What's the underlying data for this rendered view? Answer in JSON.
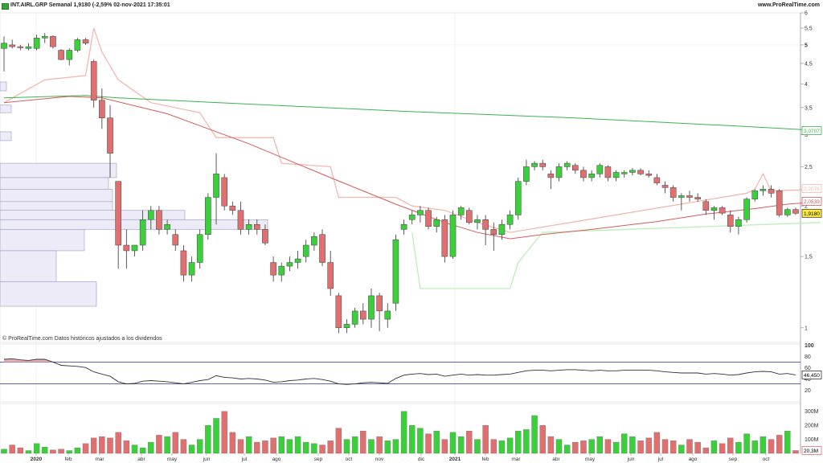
{
  "header": {
    "title": "INT.AIRL.GRP Semanal 1,9180 (-2,59% 02-nov-2021 17:35:01",
    "site": "www.ProRealTime.com"
  },
  "footnote": "© ProRealTime.com Datos históricos ajustados a los dividendos",
  "colors": {
    "up": "#3bcf3b",
    "down": "#e07070",
    "sma_slow": "#3cb44b",
    "sma_fast": "#d65b5b",
    "stop_upper": "#f3b8b0",
    "stop_lower": "#b9f0b9",
    "volume_profile": "#ecebf7",
    "rsi_line": "#333333",
    "rsi_bounds": "#2f2f8f"
  },
  "price_axis": {
    "scale": "log",
    "ticks": [
      "6",
      "5,5",
      "5",
      "4,5",
      "4",
      "3,5",
      "3",
      "2,5",
      "2",
      "1,5",
      "1"
    ],
    "bold_ticks": [
      "5"
    ],
    "labels": {
      "sma_slow": "3,0707",
      "stop": "2,2076",
      "sma_fast": "2,0539",
      "last": "1,9180"
    }
  },
  "rsi_axis": {
    "ticks": [
      "100",
      "80",
      "60",
      "40",
      "20"
    ],
    "current": "46,450"
  },
  "volume_axis": {
    "ticks": [
      "300M",
      "200M",
      "100M"
    ],
    "current": "20,3M"
  },
  "time_axis": [
    "2020",
    "feb",
    "mar",
    "abr",
    "may",
    "jun",
    "jul",
    "ago",
    "sep",
    "oct",
    "nov",
    "dic",
    "2021",
    "feb",
    "mar",
    "abr",
    "may",
    "jun",
    "jul",
    "ago",
    "sep",
    "oct"
  ],
  "chart_data": {
    "type": "candlestick",
    "title": "INT.AIRL.GRP Semanal 1,9180 (-2,59% 02-nov-2021 17:35:01",
    "timeframe": "weekly",
    "y_scale": "log",
    "candles": [
      {
        "o": 4.9,
        "h": 5.25,
        "l": 4.3,
        "c": 5.05
      },
      {
        "o": 5.0,
        "h": 5.15,
        "l": 4.9,
        "c": 4.95
      },
      {
        "o": 4.95,
        "h": 5.0,
        "l": 4.85,
        "c": 4.92
      },
      {
        "o": 4.9,
        "h": 5.05,
        "l": 4.85,
        "c": 4.95
      },
      {
        "o": 4.9,
        "h": 5.3,
        "l": 4.85,
        "c": 5.2
      },
      {
        "o": 5.2,
        "h": 5.35,
        "l": 5.05,
        "c": 5.25
      },
      {
        "o": 5.25,
        "h": 5.28,
        "l": 4.9,
        "c": 4.95
      },
      {
        "o": 4.85,
        "h": 4.88,
        "l": 4.58,
        "c": 4.6
      },
      {
        "o": 4.6,
        "h": 4.9,
        "l": 4.45,
        "c": 4.85
      },
      {
        "o": 4.85,
        "h": 5.2,
        "l": 4.8,
        "c": 5.15
      },
      {
        "o": 5.15,
        "h": 5.2,
        "l": 5.0,
        "c": 5.05
      },
      {
        "o": 4.55,
        "h": 4.6,
        "l": 3.5,
        "c": 3.65
      },
      {
        "o": 3.65,
        "h": 3.9,
        "l": 3.1,
        "c": 3.3
      },
      {
        "o": 3.3,
        "h": 3.55,
        "l": 2.35,
        "c": 2.7
      },
      {
        "o": 2.3,
        "h": 2.3,
        "l": 1.4,
        "c": 1.6
      },
      {
        "o": 1.6,
        "h": 1.75,
        "l": 1.4,
        "c": 1.55
      },
      {
        "o": 1.55,
        "h": 1.6,
        "l": 1.5,
        "c": 1.6
      },
      {
        "o": 1.6,
        "h": 1.95,
        "l": 1.55,
        "c": 1.85
      },
      {
        "o": 1.85,
        "h": 2.0,
        "l": 1.75,
        "c": 1.95
      },
      {
        "o": 1.95,
        "h": 2.0,
        "l": 1.7,
        "c": 1.75
      },
      {
        "o": 1.75,
        "h": 1.85,
        "l": 1.7,
        "c": 1.8
      },
      {
        "o": 1.7,
        "h": 1.75,
        "l": 1.55,
        "c": 1.6
      },
      {
        "o": 1.55,
        "h": 1.6,
        "l": 1.3,
        "c": 1.35
      },
      {
        "o": 1.35,
        "h": 1.5,
        "l": 1.3,
        "c": 1.45
      },
      {
        "o": 1.45,
        "h": 1.75,
        "l": 1.4,
        "c": 1.7
      },
      {
        "o": 1.7,
        "h": 2.15,
        "l": 1.65,
        "c": 2.1
      },
      {
        "o": 2.1,
        "h": 2.7,
        "l": 1.8,
        "c": 2.4
      },
      {
        "o": 2.35,
        "h": 2.4,
        "l": 1.95,
        "c": 2.0
      },
      {
        "o": 2.0,
        "h": 2.05,
        "l": 1.9,
        "c": 1.95
      },
      {
        "o": 1.95,
        "h": 2.05,
        "l": 1.7,
        "c": 1.75
      },
      {
        "o": 1.75,
        "h": 1.85,
        "l": 1.7,
        "c": 1.8
      },
      {
        "o": 1.8,
        "h": 1.85,
        "l": 1.7,
        "c": 1.75
      },
      {
        "o": 1.75,
        "h": 1.8,
        "l": 1.6,
        "c": 1.62
      },
      {
        "o": 1.45,
        "h": 1.5,
        "l": 1.3,
        "c": 1.35
      },
      {
        "o": 1.35,
        "h": 1.45,
        "l": 1.3,
        "c": 1.42
      },
      {
        "o": 1.42,
        "h": 1.5,
        "l": 1.38,
        "c": 1.45
      },
      {
        "o": 1.45,
        "h": 1.55,
        "l": 1.4,
        "c": 1.48
      },
      {
        "o": 1.5,
        "h": 1.65,
        "l": 1.45,
        "c": 1.6
      },
      {
        "o": 1.6,
        "h": 1.72,
        "l": 1.55,
        "c": 1.68
      },
      {
        "o": 1.7,
        "h": 1.75,
        "l": 1.42,
        "c": 1.45
      },
      {
        "o": 1.45,
        "h": 1.55,
        "l": 1.2,
        "c": 1.25
      },
      {
        "o": 1.2,
        "h": 1.22,
        "l": 0.97,
        "c": 1.0
      },
      {
        "o": 1.0,
        "h": 1.05,
        "l": 0.97,
        "c": 1.02
      },
      {
        "o": 1.02,
        "h": 1.12,
        "l": 1.0,
        "c": 1.1
      },
      {
        "o": 1.1,
        "h": 1.15,
        "l": 1.02,
        "c": 1.05
      },
      {
        "o": 1.05,
        "h": 1.25,
        "l": 1.0,
        "c": 1.2
      },
      {
        "o": 1.2,
        "h": 1.22,
        "l": 0.98,
        "c": 1.1
      },
      {
        "o": 1.05,
        "h": 1.15,
        "l": 1.0,
        "c": 1.1
      },
      {
        "o": 1.15,
        "h": 1.7,
        "l": 1.1,
        "c": 1.65
      },
      {
        "o": 1.75,
        "h": 1.85,
        "l": 1.7,
        "c": 1.8
      },
      {
        "o": 1.85,
        "h": 1.95,
        "l": 1.8,
        "c": 1.9
      },
      {
        "o": 1.9,
        "h": 2.0,
        "l": 1.82,
        "c": 1.95
      },
      {
        "o": 1.95,
        "h": 1.98,
        "l": 1.75,
        "c": 1.78
      },
      {
        "o": 1.78,
        "h": 1.88,
        "l": 1.72,
        "c": 1.85
      },
      {
        "o": 1.85,
        "h": 1.9,
        "l": 1.45,
        "c": 1.5
      },
      {
        "o": 1.5,
        "h": 1.95,
        "l": 1.48,
        "c": 1.9
      },
      {
        "o": 1.9,
        "h": 2.0,
        "l": 1.85,
        "c": 1.98
      },
      {
        "o": 1.95,
        "h": 1.98,
        "l": 1.8,
        "c": 1.82
      },
      {
        "o": 1.82,
        "h": 1.9,
        "l": 1.75,
        "c": 1.85
      },
      {
        "o": 1.85,
        "h": 1.9,
        "l": 1.6,
        "c": 1.75
      },
      {
        "o": 1.75,
        "h": 1.82,
        "l": 1.55,
        "c": 1.7
      },
      {
        "o": 1.7,
        "h": 1.85,
        "l": 1.65,
        "c": 1.8
      },
      {
        "o": 1.8,
        "h": 1.95,
        "l": 1.75,
        "c": 1.9
      },
      {
        "o": 1.9,
        "h": 2.35,
        "l": 1.85,
        "c": 2.3
      },
      {
        "o": 2.3,
        "h": 2.6,
        "l": 2.25,
        "c": 2.5
      },
      {
        "o": 2.5,
        "h": 2.58,
        "l": 2.45,
        "c": 2.55
      },
      {
        "o": 2.55,
        "h": 2.6,
        "l": 2.45,
        "c": 2.5
      },
      {
        "o": 2.4,
        "h": 2.45,
        "l": 2.2,
        "c": 2.35
      },
      {
        "o": 2.35,
        "h": 2.55,
        "l": 2.3,
        "c": 2.5
      },
      {
        "o": 2.5,
        "h": 2.58,
        "l": 2.45,
        "c": 2.55
      },
      {
        "o": 2.52,
        "h": 2.55,
        "l": 2.4,
        "c": 2.45
      },
      {
        "o": 2.45,
        "h": 2.5,
        "l": 2.3,
        "c": 2.35
      },
      {
        "o": 2.35,
        "h": 2.45,
        "l": 2.3,
        "c": 2.4
      },
      {
        "o": 2.4,
        "h": 2.55,
        "l": 2.35,
        "c": 2.52
      },
      {
        "o": 2.5,
        "h": 2.52,
        "l": 2.3,
        "c": 2.35
      },
      {
        "o": 2.35,
        "h": 2.45,
        "l": 2.3,
        "c": 2.42
      },
      {
        "o": 2.4,
        "h": 2.45,
        "l": 2.35,
        "c": 2.42
      },
      {
        "o": 2.42,
        "h": 2.48,
        "l": 2.38,
        "c": 2.45
      },
      {
        "o": 2.45,
        "h": 2.48,
        "l": 2.38,
        "c": 2.4
      },
      {
        "o": 2.4,
        "h": 2.45,
        "l": 2.35,
        "c": 2.38
      },
      {
        "o": 2.35,
        "h": 2.4,
        "l": 2.25,
        "c": 2.28
      },
      {
        "o": 2.25,
        "h": 2.3,
        "l": 2.15,
        "c": 2.22
      },
      {
        "o": 2.22,
        "h": 2.25,
        "l": 2.05,
        "c": 2.1
      },
      {
        "o": 2.1,
        "h": 2.15,
        "l": 1.95,
        "c": 2.12
      },
      {
        "o": 2.12,
        "h": 2.18,
        "l": 2.05,
        "c": 2.1
      },
      {
        "o": 2.1,
        "h": 2.15,
        "l": 2.05,
        "c": 2.08
      },
      {
        "o": 2.05,
        "h": 2.08,
        "l": 1.9,
        "c": 1.95
      },
      {
        "o": 1.95,
        "h": 2.0,
        "l": 1.85,
        "c": 1.98
      },
      {
        "o": 1.98,
        "h": 2.0,
        "l": 1.9,
        "c": 1.92
      },
      {
        "o": 1.9,
        "h": 1.95,
        "l": 1.72,
        "c": 1.78
      },
      {
        "o": 1.78,
        "h": 1.88,
        "l": 1.7,
        "c": 1.85
      },
      {
        "o": 1.85,
        "h": 2.1,
        "l": 1.82,
        "c": 2.08
      },
      {
        "o": 2.08,
        "h": 2.2,
        "l": 2.05,
        "c": 2.18
      },
      {
        "o": 2.18,
        "h": 2.25,
        "l": 2.12,
        "c": 2.2
      },
      {
        "o": 2.2,
        "h": 2.25,
        "l": 2.1,
        "c": 2.15
      },
      {
        "o": 2.18,
        "h": 2.2,
        "l": 1.88,
        "c": 1.9
      },
      {
        "o": 1.9,
        "h": 1.98,
        "l": 1.88,
        "c": 1.96
      },
      {
        "o": 1.96,
        "h": 1.98,
        "l": 1.9,
        "c": 1.918
      }
    ],
    "sma_slow": [
      [
        0,
        3.7
      ],
      [
        10,
        3.75
      ],
      [
        14,
        3.7
      ],
      [
        30,
        3.57
      ],
      [
        50,
        3.42
      ],
      [
        70,
        3.3
      ],
      [
        90,
        3.15
      ],
      [
        100,
        3.07
      ]
    ],
    "sma_fast": [
      [
        0,
        3.6
      ],
      [
        8,
        3.73
      ],
      [
        12,
        3.7
      ],
      [
        20,
        3.38
      ],
      [
        30,
        2.85
      ],
      [
        40,
        2.35
      ],
      [
        48,
        2.02
      ],
      [
        54,
        1.82
      ],
      [
        58,
        1.72
      ],
      [
        62,
        1.66
      ],
      [
        66,
        1.7
      ],
      [
        72,
        1.75
      ],
      [
        80,
        1.83
      ],
      [
        86,
        1.91
      ],
      [
        92,
        1.97
      ],
      [
        96,
        2.02
      ],
      [
        100,
        2.05
      ]
    ],
    "stop_upper": [
      [
        0,
        3.6
      ],
      [
        5,
        4.1
      ],
      [
        10,
        4.2
      ],
      [
        11,
        5.5
      ],
      [
        12,
        4.8
      ],
      [
        14,
        4.1
      ],
      [
        18,
        3.6
      ],
      [
        24,
        3.4
      ],
      [
        26,
        2.95
      ],
      [
        33,
        2.95
      ],
      [
        34,
        2.55
      ],
      [
        40,
        2.5
      ],
      [
        41,
        2.1
      ],
      [
        48,
        2.1
      ],
      [
        50,
        2.0
      ],
      [
        54,
        1.95
      ],
      [
        58,
        1.82
      ],
      [
        62,
        1.72
      ],
      [
        91,
        2.15
      ],
      [
        92,
        2.2
      ],
      [
        93,
        2.4
      ],
      [
        94,
        2.18
      ],
      [
        100,
        2.2
      ]
    ],
    "stop_lower": [
      [
        50,
        1.72
      ],
      [
        51,
        1.25
      ],
      [
        62,
        1.25
      ],
      [
        63,
        1.45
      ],
      [
        66,
        1.72
      ],
      [
        100,
        1.82
      ]
    ],
    "rsi": [
      75,
      76,
      74,
      73,
      75,
      75,
      70,
      64,
      63,
      62,
      60,
      52,
      48,
      44,
      34,
      30,
      31,
      35,
      36,
      35,
      34,
      32,
      30,
      33,
      36,
      38,
      45,
      42,
      41,
      39,
      40,
      39,
      37,
      33,
      34,
      36,
      37,
      39,
      40,
      38,
      35,
      30,
      29,
      30,
      32,
      33,
      32,
      31,
      40,
      46,
      48,
      49,
      47,
      48,
      44,
      46,
      48,
      46,
      47,
      46,
      46,
      47,
      48,
      51,
      54,
      55,
      55,
      54,
      55,
      56,
      56,
      55,
      54,
      55,
      54,
      54,
      55,
      55,
      55,
      55,
      54,
      52,
      51,
      50,
      50,
      50,
      48,
      49,
      48,
      46,
      47,
      50,
      52,
      53,
      52,
      48,
      49,
      46.45
    ],
    "rsi_bounds": [
      70,
      30
    ],
    "volume_millions": [
      30,
      60,
      40,
      20,
      70,
      45,
      25,
      30,
      20,
      40,
      70,
      110,
      120,
      110,
      150,
      90,
      60,
      40,
      80,
      130,
      120,
      150,
      100,
      60,
      100,
      200,
      250,
      300,
      150,
      100,
      120,
      80,
      90,
      110,
      120,
      100,
      120,
      80,
      70,
      60,
      90,
      180,
      100,
      120,
      160,
      100,
      120,
      90,
      100,
      300,
      200,
      180,
      140,
      160,
      100,
      150,
      120,
      160,
      100,
      200,
      100,
      90,
      110,
      160,
      170,
      270,
      200,
      120,
      100,
      60,
      80,
      90,
      100,
      120,
      100,
      80,
      140,
      120,
      90,
      110,
      150,
      100,
      90,
      60,
      100,
      80,
      40,
      90,
      70,
      110,
      80,
      140,
      90,
      120,
      100,
      130,
      160,
      20.3
    ]
  }
}
